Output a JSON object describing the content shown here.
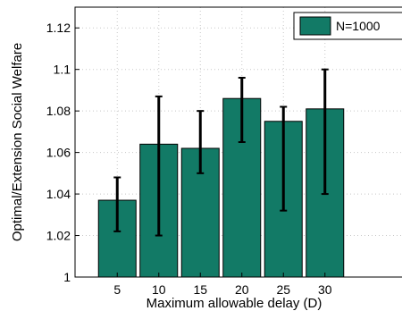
{
  "chart_data": {
    "type": "bar",
    "title": "",
    "xlabel": "Maximum allowable delay (D)",
    "ylabel": "Optimal/Extension Social Welfare",
    "categories": [
      "5",
      "10",
      "15",
      "20",
      "25",
      "30"
    ],
    "series": [
      {
        "name": "N=1000",
        "color": "#127a66",
        "values": [
          1.037,
          1.064,
          1.062,
          1.086,
          1.075,
          1.081
        ],
        "error_low": [
          1.022,
          1.02,
          1.05,
          1.065,
          1.032,
          1.04
        ],
        "error_high": [
          1.048,
          1.087,
          1.08,
          1.096,
          1.082,
          1.1
        ]
      }
    ],
    "ylim": [
      1,
      1.13
    ],
    "yticks": [
      "1",
      "1.02",
      "1.04",
      "1.06",
      "1.08",
      "1.1",
      "1.12"
    ],
    "grid": true,
    "legend_position": "top-right"
  }
}
